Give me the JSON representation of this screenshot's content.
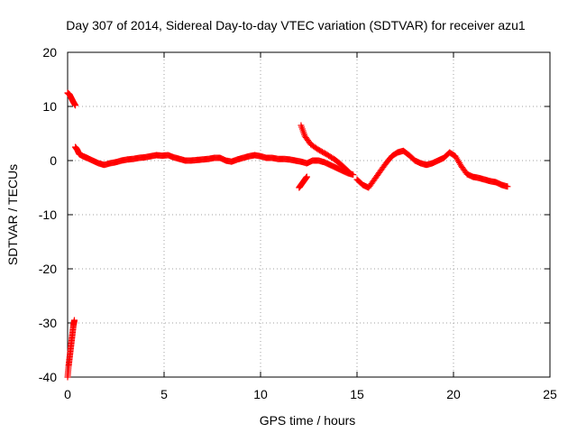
{
  "chart_data": {
    "type": "scatter",
    "title": "Day 307 of 2014, Sidereal Day-to-day VTEC variation (SDTVAR) for receiver azu1",
    "xlabel": "GPS time / hours",
    "ylabel": "SDTVAR / TECUs",
    "xlim": [
      0,
      25
    ],
    "ylim": [
      -40,
      20
    ],
    "xticks": [
      0,
      5,
      10,
      15,
      20,
      25
    ],
    "yticks": [
      -40,
      -30,
      -20,
      -10,
      0,
      10,
      20
    ],
    "grid": true,
    "marker": "+",
    "marker_color": "#ff0000",
    "series": [
      {
        "name": "SDTVAR",
        "segments": [
          {
            "x": [
              0.0,
              0.1,
              0.2,
              0.3,
              0.4
            ],
            "y": [
              12.5,
              12.2,
              11.5,
              10.8,
              10.2
            ]
          },
          {
            "x": [
              0.0,
              0.05,
              0.1,
              0.15,
              0.2,
              0.25,
              0.3,
              0.35
            ],
            "y": [
              -40,
              -38,
              -36.5,
              -35,
              -33.5,
              -32,
              -30.5,
              -29.5
            ]
          },
          {
            "x": [
              0.4,
              0.5,
              0.6,
              0.8,
              1.0,
              1.3,
              1.6,
              1.9,
              2.2,
              2.5,
              2.8,
              3.1,
              3.4,
              3.7,
              4.0,
              4.3,
              4.6,
              4.9,
              5.2,
              5.5,
              5.8,
              6.1,
              6.4,
              6.7,
              7.0,
              7.3,
              7.6,
              7.9,
              8.2,
              8.5,
              8.8,
              9.1,
              9.4,
              9.7,
              10.0,
              10.3,
              10.6,
              10.9,
              11.2,
              11.5,
              11.8,
              12.1,
              12.4,
              12.7,
              13.0,
              13.3,
              13.6,
              13.9,
              14.2,
              14.5,
              14.8
            ],
            "y": [
              2.5,
              2.0,
              1.2,
              0.8,
              0.5,
              0.0,
              -0.5,
              -0.8,
              -0.5,
              -0.3,
              0.0,
              0.2,
              0.3,
              0.5,
              0.6,
              0.8,
              1.0,
              0.9,
              1.0,
              0.6,
              0.3,
              0.0,
              0.0,
              0.1,
              0.2,
              0.3,
              0.5,
              0.5,
              0.0,
              -0.2,
              0.2,
              0.5,
              0.8,
              1.0,
              0.8,
              0.5,
              0.5,
              0.3,
              0.3,
              0.2,
              0.0,
              -0.2,
              -0.5,
              0.0,
              0.0,
              -0.3,
              -0.8,
              -1.3,
              -1.8,
              -2.3,
              -2.6
            ]
          },
          {
            "x": [
              12.1,
              12.3,
              12.6,
              13.0,
              13.4,
              13.8,
              14.1,
              14.4,
              14.7
            ],
            "y": [
              6.5,
              4.5,
              3.0,
              2.0,
              1.2,
              0.3,
              -0.5,
              -1.5,
              -2.5
            ]
          },
          {
            "x": [
              12.0,
              12.1,
              12.2,
              12.3,
              12.4
            ],
            "y": [
              -5.0,
              -4.5,
              -4.0,
              -3.5,
              -3.0
            ]
          },
          {
            "x": [
              15.0,
              15.3,
              15.6,
              15.9,
              16.2,
              16.5,
              16.8,
              17.1,
              17.4,
              17.7,
              18.0,
              18.3,
              18.6,
              18.9,
              19.2,
              19.5,
              19.8,
              20.1,
              20.4,
              20.7,
              21.0,
              21.3,
              21.6,
              21.9,
              22.2,
              22.5,
              22.8
            ],
            "y": [
              -3.5,
              -4.5,
              -5.0,
              -3.5,
              -2.0,
              -0.5,
              0.8,
              1.5,
              1.8,
              1.0,
              0.0,
              -0.5,
              -0.8,
              -0.5,
              0.0,
              0.5,
              1.5,
              0.8,
              -1.0,
              -2.5,
              -3.0,
              -3.2,
              -3.5,
              -3.8,
              -4.0,
              -4.5,
              -4.8
            ]
          }
        ]
      }
    ]
  }
}
